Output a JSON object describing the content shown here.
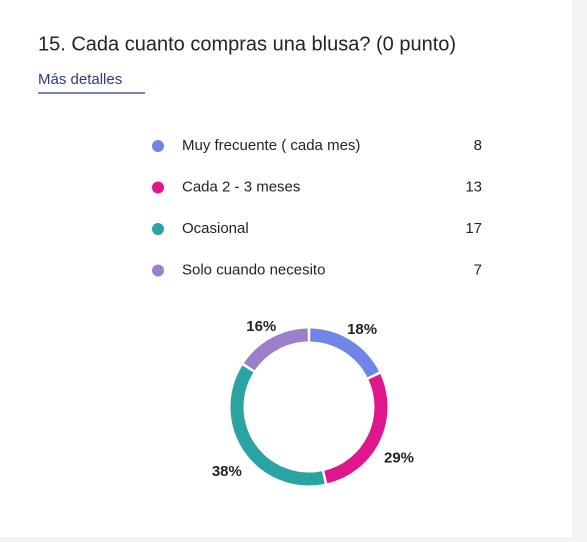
{
  "chart_data": {
    "type": "donut",
    "title": "15. Cada cuanto compras una blusa? (0 punto)",
    "link": "Más detalles",
    "categories": [
      "Muy frecuente ( cada mes)",
      "Cada 2 - 3 meses",
      "Ocasional",
      "Solo cuando necesito"
    ],
    "counts": [
      8,
      13,
      17,
      7
    ],
    "values": [
      18,
      29,
      38,
      16
    ],
    "value_labels": [
      "18%",
      "29%",
      "38%",
      "16%"
    ],
    "colors": [
      "#6f86e8",
      "#e0168c",
      "#2aa3a3",
      "#9c7fca"
    ]
  }
}
